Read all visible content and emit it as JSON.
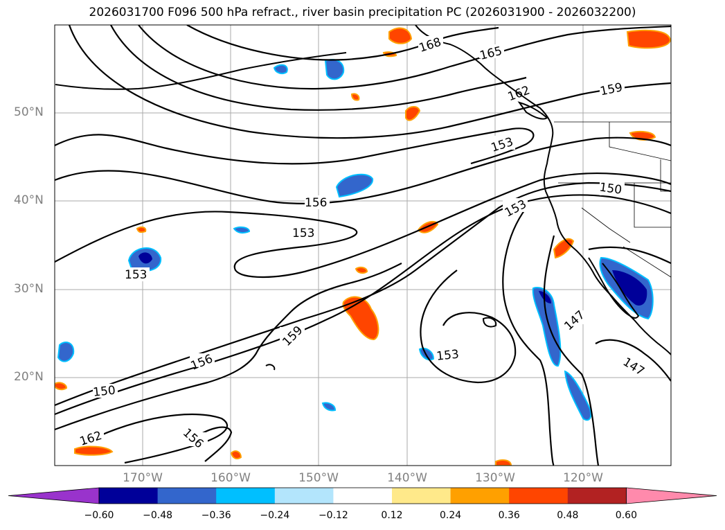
{
  "title": "2026031700 F096 500 hPa refract., river basin precipitation PC (2026031900 - 2026032200)",
  "latitude_labels": [
    "50°N",
    "40°N",
    "30°N",
    "20°N"
  ],
  "longitude_labels": [
    "170°W",
    "160°W",
    "150°W",
    "140°W",
    "130°W",
    "120°W"
  ],
  "contour_labels": [
    "168",
    "165",
    "162",
    "159",
    "153",
    "156",
    "153",
    "150",
    "153",
    "153",
    "159",
    "156",
    "153",
    "147",
    "150",
    "147",
    "162",
    "156"
  ],
  "colorbar": {
    "labels": [
      "−0.60",
      "−0.48",
      "−0.36",
      "−0.24",
      "−0.12",
      "0.12",
      "0.24",
      "0.36",
      "0.48",
      "0.60"
    ],
    "colors": [
      "#9933cc",
      "#000099",
      "#3366cc",
      "#00bfff",
      "#b3e5fc",
      "#ffffff",
      "#ffe98a",
      "#ffa000",
      "#ff4500",
      "#b22222",
      "#ff8aac"
    ]
  },
  "shading_colors": {
    "neg_low": "#3366cc",
    "neg_high": "#000099",
    "neg_edge": "#00bfff",
    "pos_low": "#ff4500",
    "pos_edge": "#ffa000",
    "pos_rim": "#ffe98a"
  }
}
